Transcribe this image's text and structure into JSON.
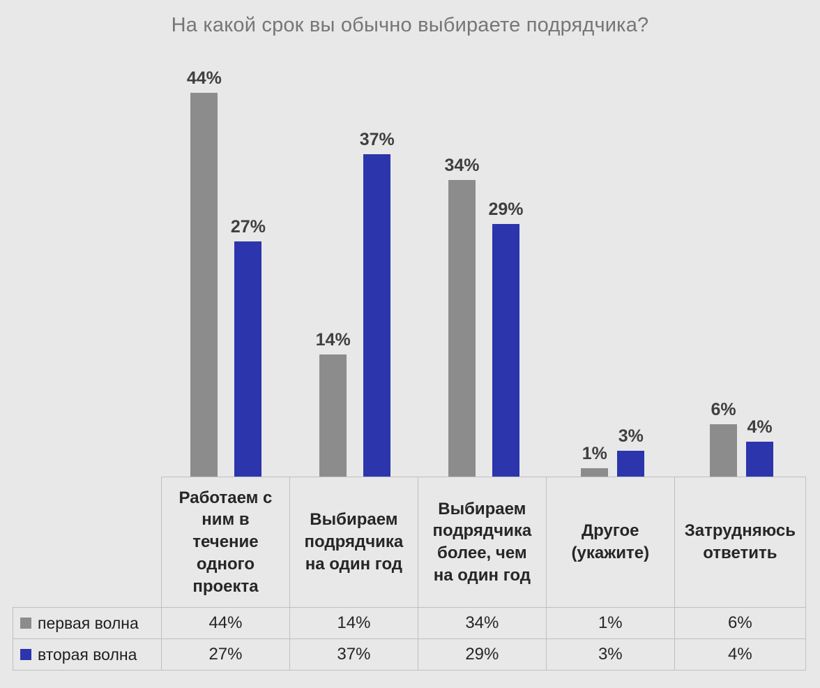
{
  "title": "На какой срок вы обычно выбираете подрядчика?",
  "chart_data": {
    "type": "bar",
    "title": "На какой срок вы обычно выбираете подрядчика?",
    "categories": [
      "Работаем с ним в течение одного проекта",
      "Выбираем подрядчика на один год",
      "Выбираем подрядчика более, чем на один год",
      "Другое (укажите)",
      "Затрудняюсь ответить"
    ],
    "series": [
      {
        "name": "первая волна",
        "color": "#8c8c8c",
        "values": [
          44,
          14,
          34,
          1,
          6
        ]
      },
      {
        "name": "вторая волна",
        "color": "#2c35ac",
        "values": [
          27,
          37,
          29,
          3,
          4
        ]
      }
    ],
    "value_suffix": "%",
    "xlabel": "",
    "ylabel": "",
    "ylim": [
      0,
      45
    ],
    "grid": false,
    "legend_position": "data-table-left",
    "data_table": true,
    "background_color": "#e8e8e8",
    "label_color": "#3f3f3f",
    "title_color": "#767676"
  }
}
